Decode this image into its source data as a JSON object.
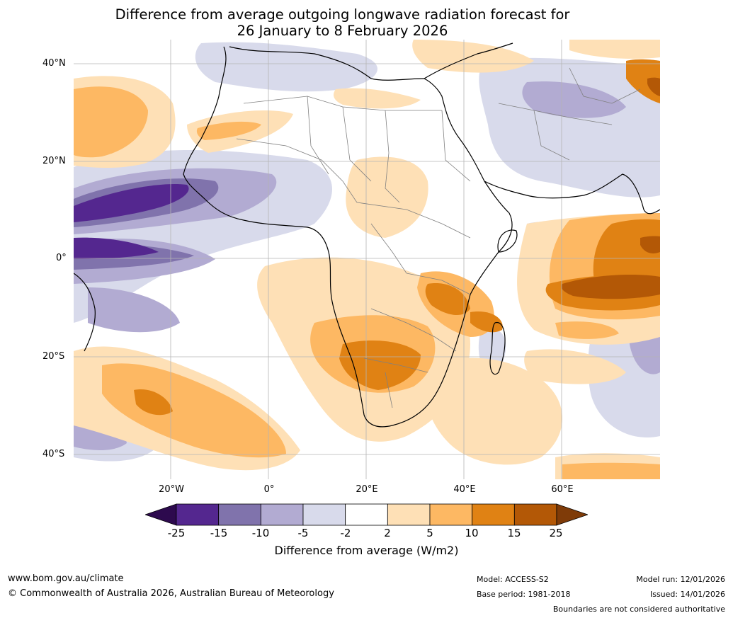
{
  "title": {
    "line1": "Difference from average outgoing longwave radiation forecast for",
    "line2": "26 January to 8 February 2026"
  },
  "axes": {
    "lat_labels": [
      "40°N",
      "20°N",
      "0°",
      "20°S",
      "40°S"
    ],
    "lon_labels": [
      "20°W",
      "0°",
      "20°E",
      "40°E",
      "60°E"
    ]
  },
  "colorbar": {
    "ticks": [
      "-25",
      "-15",
      "-10",
      "-5",
      "-2",
      "2",
      "5",
      "10",
      "15",
      "25"
    ],
    "label": "Difference from average (W/m2)",
    "colors": [
      "#2d0a4e",
      "#54278f",
      "#8073ac",
      "#b2abd2",
      "#d8daeb",
      "#ffffff",
      "#fee0b6",
      "#fdb863",
      "#e08214",
      "#b35806",
      "#7f3b08"
    ]
  },
  "footer": {
    "url": "www.bom.gov.au/climate",
    "copyright": "© Commonwealth of Australia 2026, Australian Bureau of Meteorology",
    "model": "Model: ACCESS-S2",
    "base_period": "Base period: 1981-2018",
    "model_run": "Model run: 12/01/2026",
    "issued": "Issued: 14/01/2026",
    "boundaries_note": "Boundaries are not considered authoritative"
  }
}
